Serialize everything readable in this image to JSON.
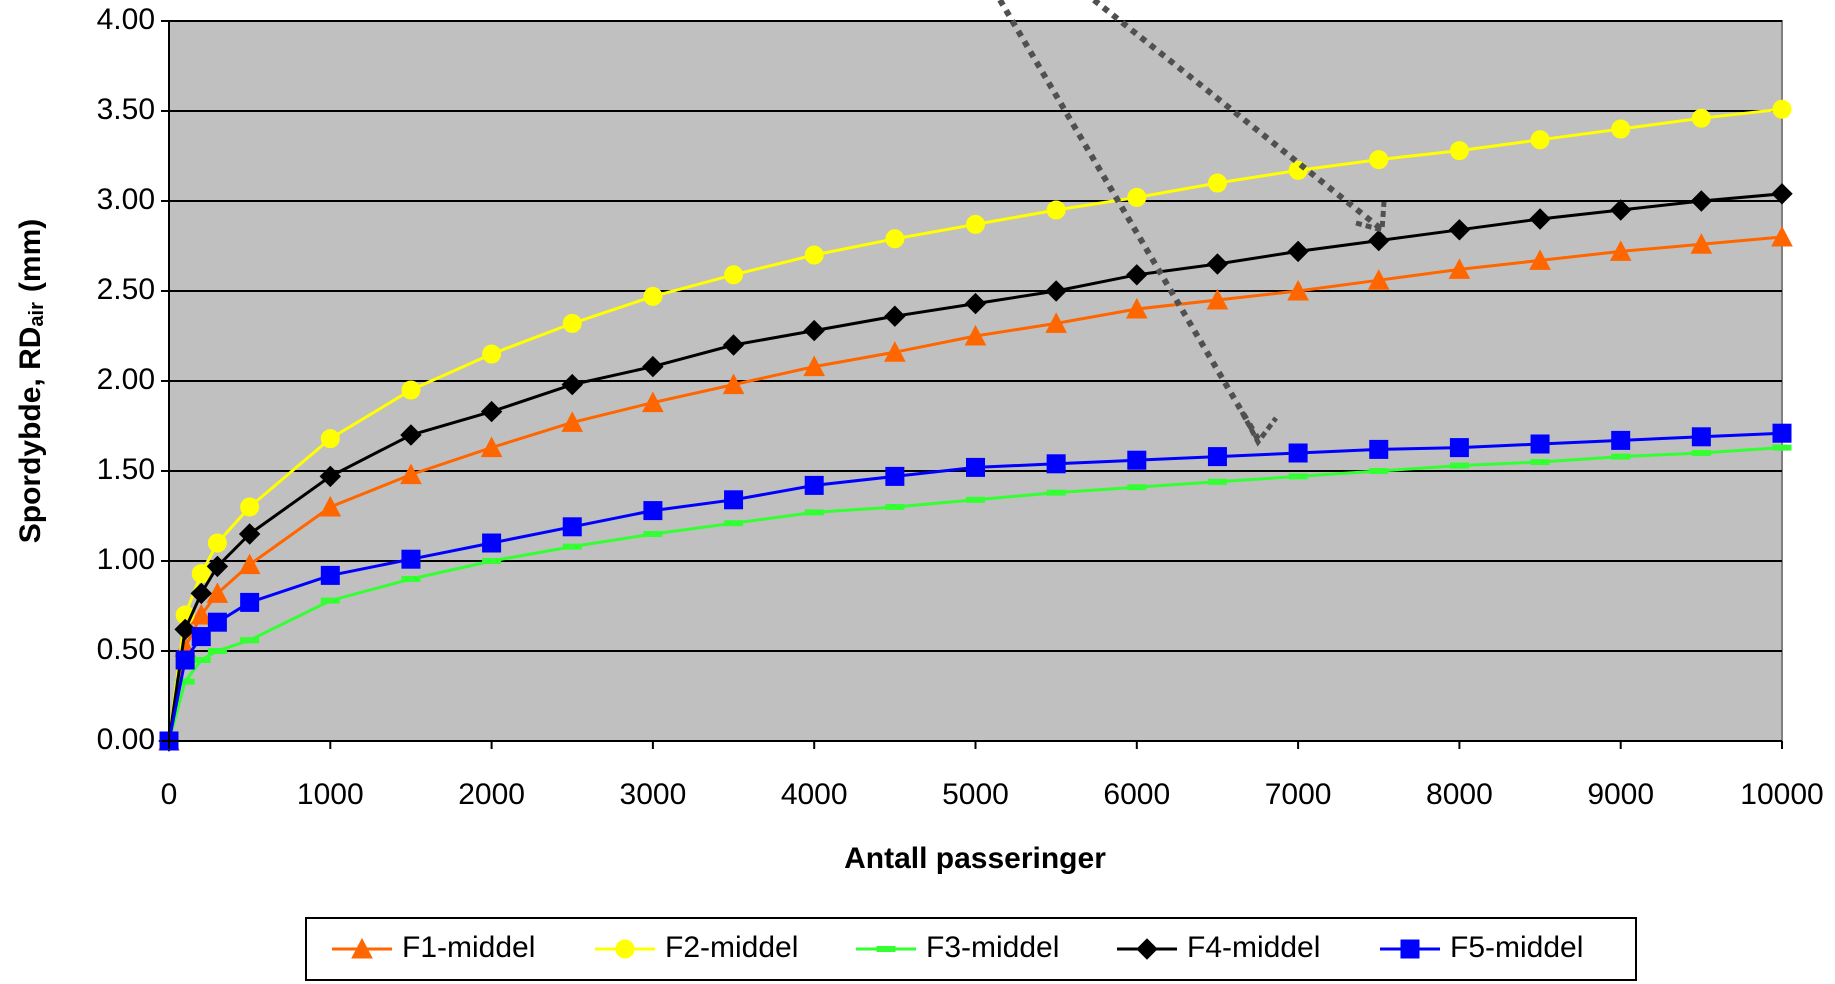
{
  "chart_data": {
    "type": "line",
    "xlabel": "Antall passeringer",
    "ylabel": [
      "Spordybde, RD",
      "air",
      "(mm)"
    ],
    "x": [
      0,
      100,
      200,
      300,
      500,
      1000,
      1500,
      2000,
      2500,
      3000,
      3500,
      4000,
      4500,
      5000,
      5500,
      6000,
      6500,
      7000,
      7500,
      8000,
      8500,
      9000,
      9500,
      10000
    ],
    "series": [
      {
        "name": "F1-middel",
        "color": "#ff6600",
        "marker": "triangle",
        "values": [
          0,
          0.52,
          0.7,
          0.82,
          0.98,
          1.3,
          1.48,
          1.63,
          1.77,
          1.88,
          1.98,
          2.08,
          2.16,
          2.25,
          2.32,
          2.4,
          2.45,
          2.5,
          2.56,
          2.62,
          2.67,
          2.72,
          2.76,
          2.8
        ]
      },
      {
        "name": "F2-middel",
        "color": "#ffff00",
        "marker": "circle",
        "values": [
          0,
          0.7,
          0.93,
          1.1,
          1.3,
          1.68,
          1.95,
          2.15,
          2.32,
          2.47,
          2.59,
          2.7,
          2.79,
          2.87,
          2.95,
          3.02,
          3.1,
          3.17,
          3.23,
          3.28,
          3.34,
          3.4,
          3.46,
          3.51
        ]
      },
      {
        "name": "F3-middel",
        "color": "#33ff33",
        "marker": "dash",
        "values": [
          0,
          0.33,
          0.45,
          0.5,
          0.56,
          0.78,
          0.9,
          1.0,
          1.08,
          1.15,
          1.21,
          1.27,
          1.3,
          1.34,
          1.38,
          1.41,
          1.44,
          1.47,
          1.5,
          1.53,
          1.55,
          1.58,
          1.6,
          1.63
        ]
      },
      {
        "name": "F4-middel",
        "color": "#000000",
        "marker": "diamond",
        "values": [
          0,
          0.62,
          0.82,
          0.97,
          1.15,
          1.47,
          1.7,
          1.83,
          1.98,
          2.08,
          2.2,
          2.28,
          2.36,
          2.43,
          2.5,
          2.59,
          2.65,
          2.72,
          2.78,
          2.84,
          2.9,
          2.95,
          3.0,
          3.04
        ]
      },
      {
        "name": "F5-middel",
        "color": "#0000ff",
        "marker": "square",
        "values": [
          0,
          0.45,
          0.58,
          0.66,
          0.77,
          0.92,
          1.01,
          1.1,
          1.19,
          1.28,
          1.34,
          1.42,
          1.47,
          1.52,
          1.54,
          1.56,
          1.58,
          1.6,
          1.62,
          1.63,
          1.65,
          1.67,
          1.69,
          1.71
        ]
      }
    ],
    "xlim": [
      0,
      10000
    ],
    "xticks": [
      0,
      1000,
      2000,
      3000,
      4000,
      5000,
      6000,
      7000,
      8000,
      9000,
      10000
    ],
    "ylim": [
      0,
      4
    ],
    "yticks": [
      {
        "value": 0,
        "label": "0.00"
      },
      {
        "value": 0.5,
        "label": "0.50"
      },
      {
        "value": 1,
        "label": "1.00"
      },
      {
        "value": 1.5,
        "label": "1.50"
      },
      {
        "value": 2,
        "label": "2.00"
      },
      {
        "value": 2.5,
        "label": "2.50"
      },
      {
        "value": 3,
        "label": "3.00"
      },
      {
        "value": 3.5,
        "label": "3.50"
      },
      {
        "value": 4,
        "label": "4.00"
      }
    ],
    "grid": true,
    "legend": "bottom",
    "plot_background": "#c0c0c0"
  }
}
